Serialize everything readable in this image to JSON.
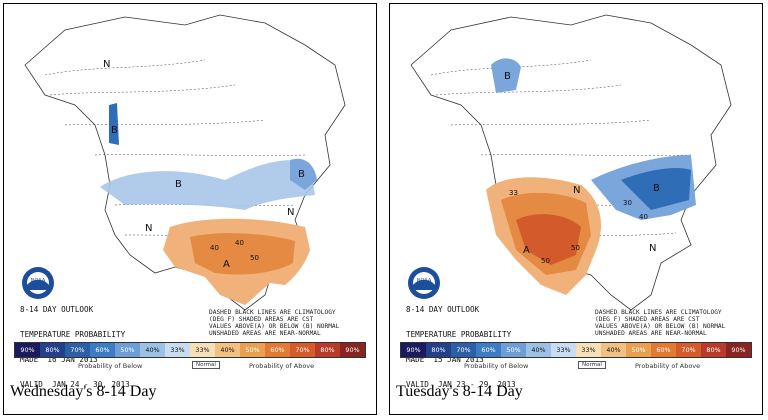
{
  "panels": [
    {
      "id": "left",
      "caption": "Wednesday's 8-14 Day",
      "map_text": [
        "8-14 DAY OUTLOOK",
        "TEMPERATURE PROBABILITY",
        "MADE  16 JAN 2013",
        "VALID  JAN 24 - 30, 2013"
      ],
      "note": [
        "DASHED BLACK LINES ARE CLIMATOLOGY",
        "(DEG F) SHADED AREAS ARE CST",
        "VALUES ABOVE(A) OR BELOW (B) NORMAL",
        "UNSHADED AREAS ARE NEAR-NORMAL"
      ],
      "region_labels": [
        "N",
        "B",
        "B",
        "B",
        "N",
        "N",
        "A",
        "40",
        "40",
        "50"
      ]
    },
    {
      "id": "right",
      "caption": "Tuesday's 8-14 Day",
      "map_text": [
        "8-14 DAY OUTLOOK",
        "TEMPERATURE PROBABILITY",
        "MADE  15 JAN 2013",
        "VALID  JAN 23 - 29, 2013"
      ],
      "note": [
        "DASHED BLACK LINES ARE CLIMATOLOGY",
        "(DEG F) SHADED AREAS ARE CST",
        "VALUES ABOVE(A) OR BELOW (B) NORMAL",
        "UNSHADED AREAS ARE NEAR-NORMAL"
      ],
      "region_labels": [
        "B",
        "B",
        "N",
        "N",
        "A",
        "33",
        "50",
        "50",
        "30",
        "40"
      ]
    }
  ],
  "legend": {
    "below_values": [
      "90%",
      "80%",
      "70%",
      "60%",
      "50%",
      "40%",
      "33%"
    ],
    "above_values": [
      "33%",
      "40%",
      "50%",
      "60%",
      "70%",
      "80%",
      "90%"
    ],
    "below_colors": [
      "#1a1a5e",
      "#24408a",
      "#2b5fa8",
      "#3b7cc4",
      "#6d9fd6",
      "#9dc0e6",
      "#c9dcf1"
    ],
    "above_colors": [
      "#f7dfb8",
      "#f2c083",
      "#eaa050",
      "#e27a34",
      "#d65a2a",
      "#b83a28",
      "#8a2420"
    ],
    "below_label": "Probability of Below",
    "normal_label": "Normal",
    "above_label": "Probability of Above"
  },
  "colors": {
    "below_light": "#a9c6e8",
    "below_mid": "#7aa6db",
    "below_dark": "#2f6db7",
    "above_light": "#f0b27a",
    "above_mid": "#e58a43",
    "above_dark": "#d35a2a"
  },
  "logo_text": "NOAA"
}
